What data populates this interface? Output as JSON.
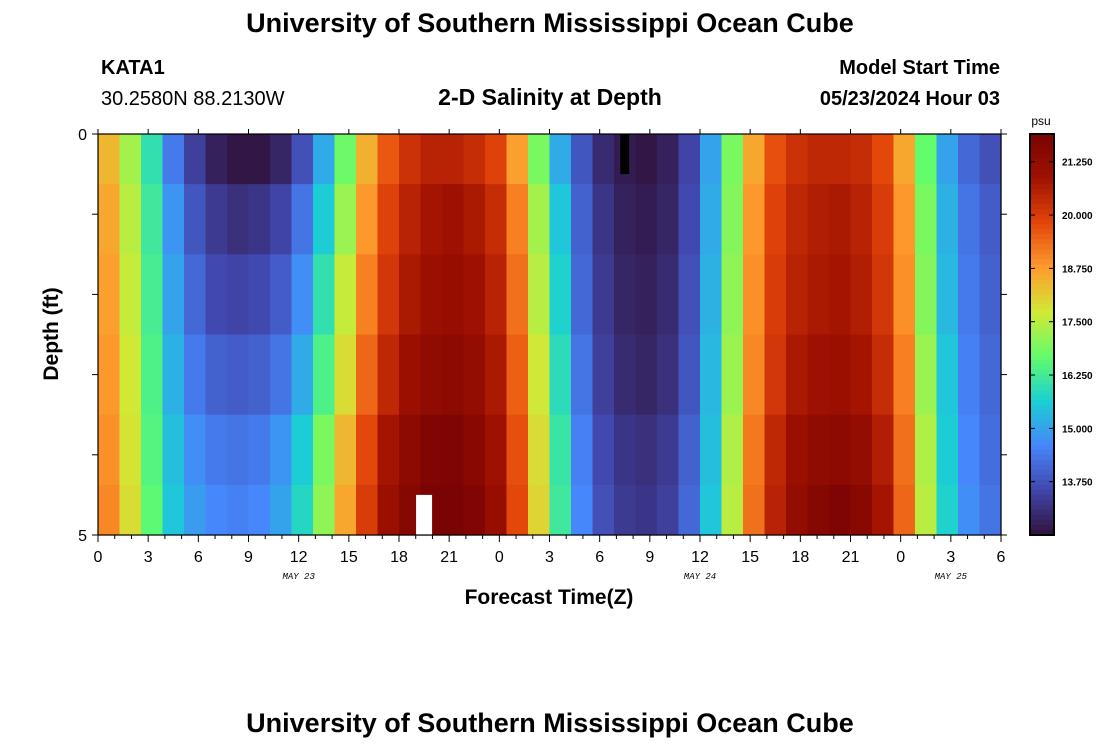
{
  "header": {
    "title": "University of Southern Mississippi Ocean Cube",
    "station_id": "KATA1",
    "station_coords": "30.2580N  88.2130W",
    "subtitle": "2-D Salinity at Depth",
    "start_label": "Model Start Time",
    "start_value": "05/23/2024 Hour 03"
  },
  "footer": {
    "title": "University of Southern Mississippi Ocean Cube"
  },
  "chart_data": {
    "type": "heatmap",
    "title": "2-D Salinity at Depth",
    "xlabel": "Forecast Time(Z)",
    "ylabel": "Depth (ft)",
    "x_hours_from_may23_00": [
      0,
      54
    ],
    "xlim": [
      "05/23 00Z",
      "05/25 06Z"
    ],
    "x_tick_labels": [
      "0",
      "3",
      "6",
      "9",
      "12",
      "15",
      "18",
      "21",
      "0",
      "3",
      "6",
      "9",
      "12",
      "15",
      "18",
      "21",
      "0",
      "3",
      "6"
    ],
    "date_labels": [
      {
        "text": "MAY 23",
        "at_hour": 12
      },
      {
        "text": "MAY 24",
        "at_hour": 36
      },
      {
        "text": "MAY 25",
        "at_hour": 51
      }
    ],
    "ylim": [
      0,
      5
    ],
    "y_tick_labels": [
      "0",
      "5"
    ],
    "depth_levels_ft": [
      0.25,
      1.0,
      2.0,
      3.0,
      4.0,
      4.75
    ],
    "colorbar": {
      "unit": "psu",
      "vmin": 12.5,
      "vmax": 21.9,
      "ticks": [
        "21.250",
        "20.000",
        "18.750",
        "17.500",
        "16.250",
        "15.000",
        "13.750"
      ],
      "palette": [
        "#30123b",
        "#4146ac",
        "#4686fb",
        "#1bcfd4",
        "#61fc6c",
        "#d2e935",
        "#fe9b2d",
        "#e4460a",
        "#a01101",
        "#7a0403"
      ]
    },
    "series": [
      {
        "depth_ft": 0.25,
        "values": [
          18.4,
          17.3,
          16.0,
          14.4,
          13.4,
          12.8,
          12.6,
          12.6,
          12.9,
          13.7,
          15.1,
          16.8,
          18.5,
          19.6,
          20.2,
          20.5,
          20.5,
          20.3,
          19.9,
          18.7,
          16.9,
          15.1,
          13.8,
          13.0,
          12.7,
          12.6,
          12.8,
          13.5,
          15.0,
          16.9,
          18.6,
          19.7,
          20.2,
          20.4,
          20.4,
          20.3,
          19.8,
          18.6,
          16.7,
          15.0,
          14.1,
          13.7
        ]
      },
      {
        "depth_ft": 1.0,
        "values": [
          18.6,
          17.5,
          16.2,
          14.8,
          13.8,
          13.3,
          13.1,
          13.2,
          13.5,
          14.3,
          15.6,
          17.2,
          18.8,
          19.9,
          20.5,
          20.8,
          20.9,
          20.7,
          20.3,
          19.1,
          17.3,
          15.5,
          14.0,
          13.2,
          12.8,
          12.7,
          12.9,
          13.6,
          15.1,
          17.0,
          18.8,
          19.9,
          20.4,
          20.6,
          20.7,
          20.5,
          20.0,
          18.8,
          16.9,
          15.2,
          14.3,
          13.9
        ]
      },
      {
        "depth_ft": 2.0,
        "values": [
          18.7,
          17.6,
          16.3,
          15.0,
          14.1,
          13.6,
          13.5,
          13.6,
          13.9,
          14.7,
          16.0,
          17.6,
          19.1,
          20.1,
          20.7,
          21.0,
          21.1,
          20.9,
          20.5,
          19.3,
          17.5,
          15.7,
          14.1,
          13.3,
          12.9,
          12.8,
          13.0,
          13.7,
          15.2,
          17.1,
          18.9,
          20.0,
          20.5,
          20.7,
          20.8,
          20.6,
          20.1,
          18.9,
          17.0,
          15.3,
          14.4,
          14.0
        ]
      },
      {
        "depth_ft": 3.0,
        "values": [
          18.8,
          17.7,
          16.4,
          15.2,
          14.4,
          14.0,
          13.9,
          14.0,
          14.3,
          15.1,
          16.4,
          17.9,
          19.4,
          20.4,
          21.0,
          21.3,
          21.4,
          21.2,
          20.7,
          19.5,
          17.7,
          15.9,
          14.3,
          13.4,
          13.0,
          12.9,
          13.1,
          13.8,
          15.3,
          17.2,
          19.0,
          20.1,
          20.7,
          20.9,
          21.0,
          20.8,
          20.3,
          19.1,
          17.2,
          15.5,
          14.5,
          14.1
        ]
      },
      {
        "depth_ft": 4.0,
        "values": [
          18.9,
          17.8,
          16.5,
          15.4,
          14.7,
          14.4,
          14.3,
          14.4,
          14.8,
          15.6,
          16.9,
          18.4,
          19.8,
          20.8,
          21.4,
          21.7,
          21.8,
          21.5,
          20.9,
          19.7,
          17.9,
          16.1,
          14.5,
          13.6,
          13.2,
          13.1,
          13.3,
          14.0,
          15.4,
          17.4,
          19.2,
          20.4,
          21.0,
          21.3,
          21.4,
          21.2,
          20.6,
          19.3,
          17.4,
          15.6,
          14.6,
          14.2
        ]
      },
      {
        "depth_ft": 4.75,
        "values": [
          19.0,
          17.9,
          16.6,
          15.5,
          14.9,
          14.6,
          14.5,
          14.6,
          15.0,
          15.8,
          17.1,
          18.6,
          20.0,
          21.0,
          21.6,
          21.9,
          22.0,
          21.7,
          21.1,
          19.8,
          18.0,
          16.2,
          14.6,
          13.7,
          13.3,
          13.2,
          13.4,
          14.1,
          15.5,
          17.5,
          19.3,
          20.5,
          21.2,
          21.6,
          21.8,
          21.5,
          20.8,
          19.4,
          17.5,
          15.7,
          14.7,
          14.3
        ]
      }
    ],
    "annotations": [
      {
        "type": "marker",
        "color": "#000000",
        "hour": 31.5,
        "depth_range_ft": [
          0,
          0.5
        ]
      },
      {
        "type": "marker",
        "color": "#ffffff",
        "hour": 19.5,
        "depth_range_ft": [
          4.5,
          5
        ]
      }
    ]
  }
}
